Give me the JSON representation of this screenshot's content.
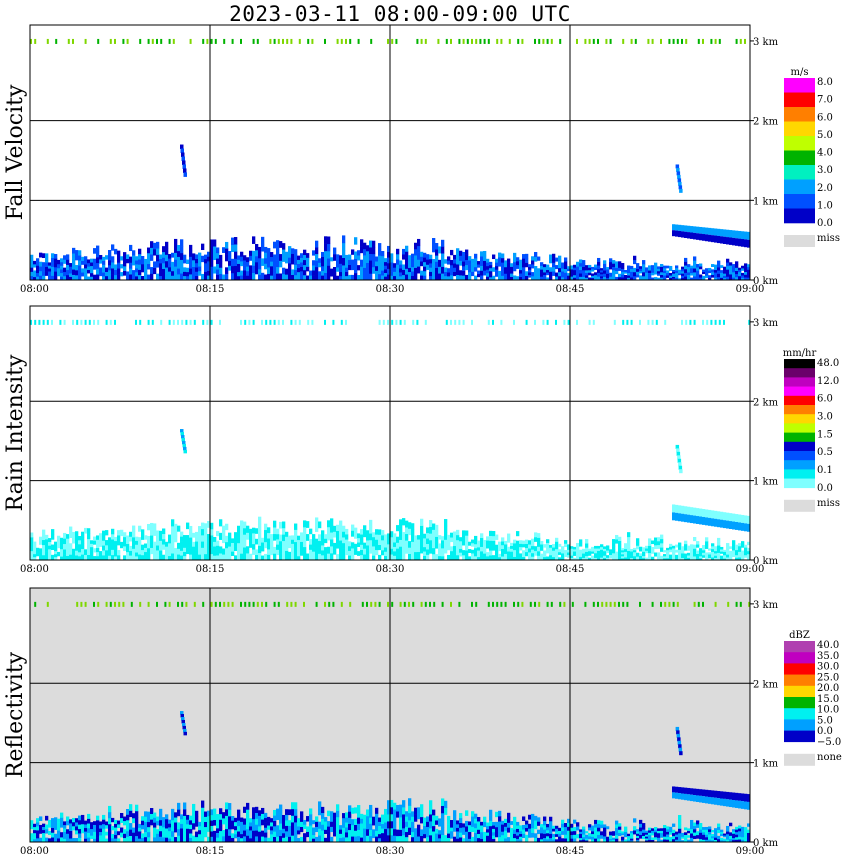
{
  "title": "2023-03-11   08:00-09:00 UTC",
  "chart_data": [
    {
      "type": "heatmap",
      "ylabel": "Fall Velocity",
      "background": "#ffffff",
      "x_ticks": [
        "08:00",
        "08:15",
        "08:30",
        "08:45",
        "09:00"
      ],
      "y_ticks": [
        "0 km",
        "1 km",
        "2 km",
        "3 km"
      ],
      "x_range_minutes": [
        0,
        60
      ],
      "y_range_km": [
        0,
        3.2
      ],
      "colorbar": {
        "unit": "m/s",
        "labels": [
          "8.0",
          "7.0",
          "6.0",
          "5.0",
          "4.0",
          "3.0",
          "2.0",
          "1.0",
          "0.0"
        ],
        "colors": [
          "#ff00ff",
          "#ff0000",
          "#ff7f00",
          "#ffd700",
          "#bfff00",
          "#00b300",
          "#00f0c0",
          "#00a0ff",
          "#0050ff",
          "#0000c8"
        ],
        "missing_label": "miss",
        "missing_color": "#dcdcdc"
      },
      "features": [
        {
          "kind": "layer",
          "t_start": 0,
          "t_end": 60,
          "base_km": 0,
          "top_km": 0.5,
          "colors": [
            "#0000c8",
            "#0050ff",
            "#00a0ff"
          ]
        },
        {
          "kind": "cloud_top_band",
          "height_km": 3.0,
          "colors": [
            "#7fd700",
            "#00b300"
          ]
        },
        {
          "kind": "streak",
          "t_min": 12.5,
          "height_km": [
            1.3,
            1.7
          ],
          "colors": [
            "#0000c8",
            "#0050ff"
          ]
        },
        {
          "kind": "streak",
          "t_min": 53.8,
          "height_km": [
            1.1,
            1.45
          ],
          "colors": [
            "#0050ff",
            "#00a0ff"
          ]
        },
        {
          "kind": "sloped_layer",
          "t_start": 53.5,
          "t_end": 60,
          "top_km": [
            0.7,
            0.6
          ],
          "base_km": [
            0.55,
            0.4
          ],
          "colors": [
            "#00a0ff",
            "#0000c8"
          ]
        }
      ]
    },
    {
      "type": "heatmap",
      "ylabel": "Rain Intensity",
      "background": "#ffffff",
      "x_ticks": [
        "08:00",
        "08:15",
        "08:30",
        "08:45",
        "09:00"
      ],
      "y_ticks": [
        "0 km",
        "1 km",
        "2 km",
        "3 km"
      ],
      "x_range_minutes": [
        0,
        60
      ],
      "y_range_km": [
        0,
        3.2
      ],
      "colorbar": {
        "unit": "mm/hr",
        "labels": [
          "48.0",
          "12.0",
          "6.0",
          "3.0",
          "1.5",
          "0.5",
          "0.1",
          "0.0"
        ],
        "colors": [
          "#000000",
          "#6a006a",
          "#c000c0",
          "#ff00ff",
          "#ff0000",
          "#ff7f00",
          "#ffd700",
          "#bfff00",
          "#00b300",
          "#0000c8",
          "#0050ff",
          "#00a0ff",
          "#00f0f0",
          "#7fffff"
        ],
        "missing_label": "miss",
        "missing_color": "#dcdcdc"
      },
      "features": [
        {
          "kind": "layer",
          "t_start": 0,
          "t_end": 60,
          "base_km": 0,
          "top_km": 0.5,
          "colors": [
            "#7fffff",
            "#00f0f0"
          ]
        },
        {
          "kind": "cloud_top_band",
          "height_km": 3.0,
          "colors": [
            "#7fffff",
            "#00f0f0"
          ]
        },
        {
          "kind": "streak",
          "t_min": 12.5,
          "height_km": [
            1.35,
            1.65
          ],
          "colors": [
            "#00a0ff",
            "#00f0f0"
          ]
        },
        {
          "kind": "streak",
          "t_min": 53.8,
          "height_km": [
            1.1,
            1.45
          ],
          "colors": [
            "#00f0f0",
            "#7fffff"
          ]
        },
        {
          "kind": "sloped_layer",
          "t_start": 53.5,
          "t_end": 60,
          "top_km": [
            0.7,
            0.55
          ],
          "base_km": [
            0.5,
            0.35
          ],
          "colors": [
            "#7fffff",
            "#00a0ff"
          ]
        }
      ]
    },
    {
      "type": "heatmap",
      "ylabel": "Reflectivity",
      "background": "#dcdcdc",
      "x_ticks": [
        "08:00",
        "08:15",
        "08:30",
        "08:45",
        "09:00"
      ],
      "y_ticks": [
        "0 km",
        "1 km",
        "2 km",
        "3 km"
      ],
      "x_range_minutes": [
        0,
        60
      ],
      "y_range_km": [
        0,
        3.2
      ],
      "colorbar": {
        "unit": "dBZ",
        "labels": [
          "40.0",
          "35.0",
          "30.0",
          "25.0",
          "20.0",
          "15.0",
          "10.0",
          "5.0",
          "0.0",
          "−5.0"
        ],
        "colors": [
          "#b040b0",
          "#c000c0",
          "#ff0000",
          "#ff7f00",
          "#ffd700",
          "#00b300",
          "#00f0f0",
          "#00a0ff",
          "#0000c8"
        ],
        "missing_label": "none",
        "missing_color": "#dcdcdc"
      },
      "features": [
        {
          "kind": "layer",
          "t_start": 0,
          "t_end": 60,
          "base_km": 0,
          "top_km": 0.5,
          "colors": [
            "#00a0ff",
            "#00f0f0",
            "#0000c8"
          ]
        },
        {
          "kind": "cloud_top_band",
          "height_km": 3.0,
          "colors": [
            "#00b300",
            "#7fd700"
          ]
        },
        {
          "kind": "streak",
          "t_min": 12.5,
          "height_km": [
            1.35,
            1.65
          ],
          "colors": [
            "#00a0ff",
            "#0000c8"
          ]
        },
        {
          "kind": "streak",
          "t_min": 53.8,
          "height_km": [
            1.1,
            1.45
          ],
          "colors": [
            "#00a0ff",
            "#0000c8"
          ]
        },
        {
          "kind": "sloped_layer",
          "t_start": 53.5,
          "t_end": 60,
          "top_km": [
            0.7,
            0.6
          ],
          "base_km": [
            0.55,
            0.4
          ],
          "colors": [
            "#0000c8",
            "#00a0ff"
          ]
        }
      ]
    }
  ]
}
